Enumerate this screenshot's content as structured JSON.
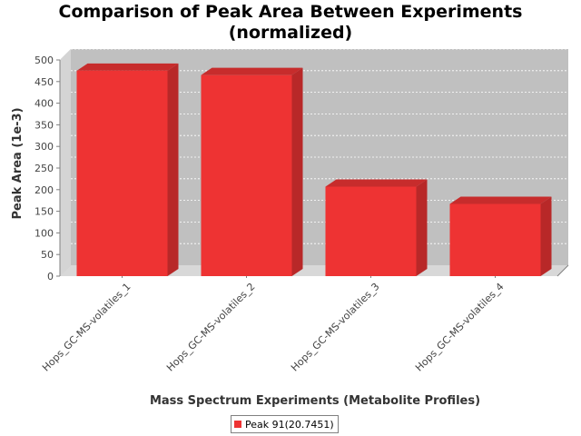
{
  "chart_data": {
    "type": "bar",
    "title_line1": "Comparison of Peak Area Between Experiments",
    "title_line2": "(normalized)",
    "xlabel": "Mass Spectrum Experiments (Metabolite Profiles)",
    "ylabel": "Peak Area (1e-3)",
    "categories": [
      "Hops_GC-MS-volatiles_1",
      "Hops_GC-MS-volatiles_2",
      "Hops_GC-MS-volatiles_3",
      "Hops_GC-MS-volatiles_4"
    ],
    "series": [
      {
        "name": "Peak 91(20.7451)",
        "values": [
          475,
          465,
          207,
          167
        ],
        "color": "#ee3333"
      }
    ],
    "ylim": [
      0,
      500
    ],
    "yticks": [
      0,
      50,
      100,
      150,
      200,
      250,
      300,
      350,
      400,
      450,
      500
    ],
    "grid": true,
    "legend_position": "bottom",
    "colors": {
      "plot_background": "#c0c0c0",
      "bar": "#ee3333",
      "bar_top": "#c72c2c",
      "bar_side": "#b82828"
    }
  }
}
